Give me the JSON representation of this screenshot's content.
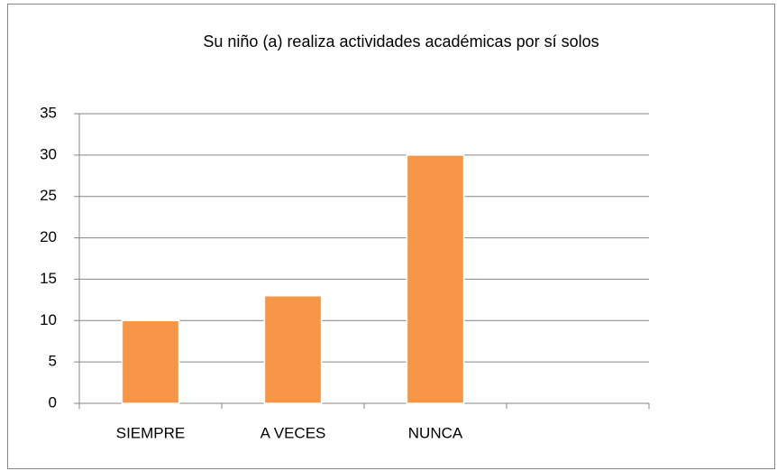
{
  "chart_data": {
    "type": "bar",
    "title": "Su niño (a) realiza actividades académicas por sí solos",
    "categories": [
      "SIEMPRE",
      "A VECES",
      "NUNCA",
      null
    ],
    "values": [
      10,
      13,
      30,
      null
    ],
    "color": "#f79646",
    "ylim": [
      0,
      35
    ],
    "yticks": [
      0,
      5,
      10,
      15,
      20,
      25,
      30,
      35
    ],
    "grid": true
  }
}
